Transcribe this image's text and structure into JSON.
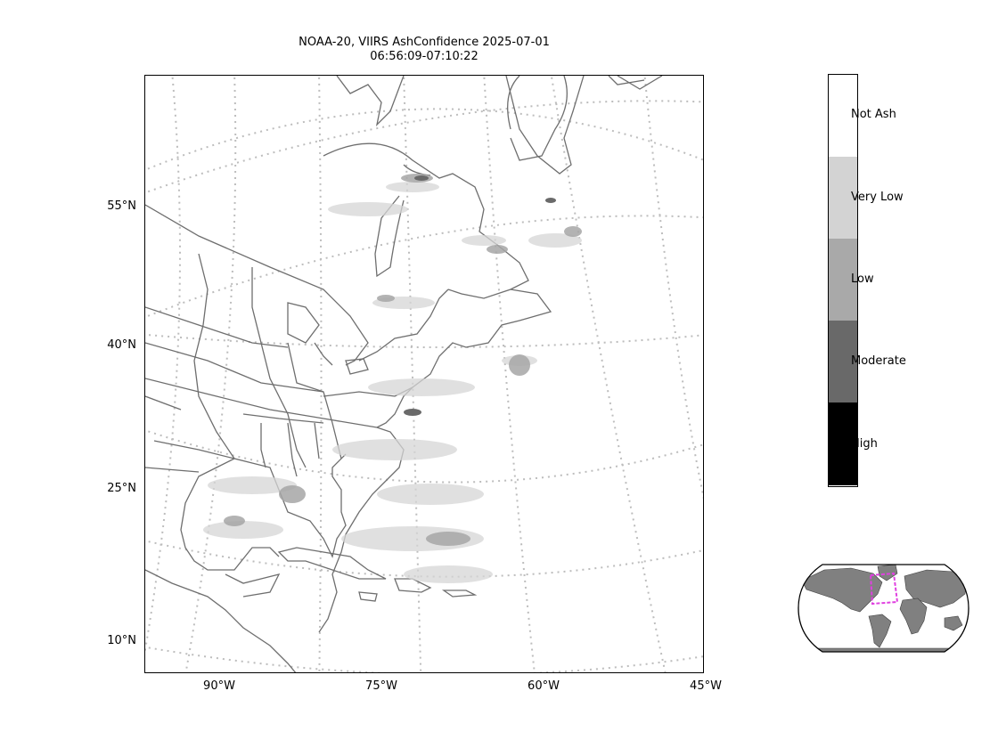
{
  "title": {
    "line1": "NOAA-20, VIIRS AshConfidence 2025-07-01",
    "line2": "06:56:09-07:10:22"
  },
  "lat_labels": [
    "55°N",
    "40°N",
    "25°N",
    "10°N"
  ],
  "lon_labels": [
    "90°W",
    "75°W",
    "60°W",
    "45°W"
  ],
  "colorbar": {
    "categories": [
      {
        "label": "Not Ash",
        "color": "#ffffff"
      },
      {
        "label": "Very Low",
        "color": "#d3d3d3"
      },
      {
        "label": "Low",
        "color": "#a9a9a9"
      },
      {
        "label": "Moderate",
        "color": "#696969"
      },
      {
        "label": "High",
        "color": "#000000"
      }
    ]
  },
  "colors": {
    "coastline": "#6e6e6e",
    "graticule": "#bdbdbd",
    "land_inset": "#808080",
    "inset_box": "#e040e0"
  }
}
